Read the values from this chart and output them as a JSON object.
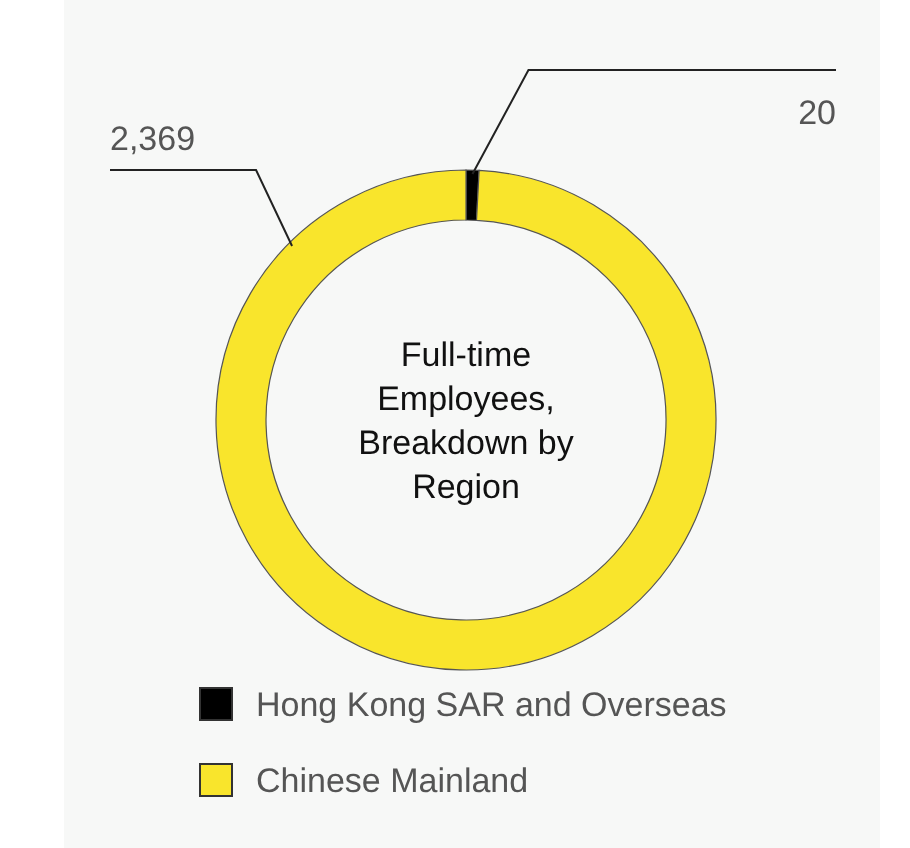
{
  "chart_data": {
    "type": "donut",
    "title": "Full-time Employees, Breakdown by Region",
    "categories": [
      "Hong Kong SAR and Overseas",
      "Chinese Mainland"
    ],
    "values": [
      20,
      2369
    ],
    "colors": [
      "#000000",
      "#f9e52c"
    ],
    "value_labels": [
      "20",
      "2,369"
    ],
    "legend": "bottom"
  }
}
